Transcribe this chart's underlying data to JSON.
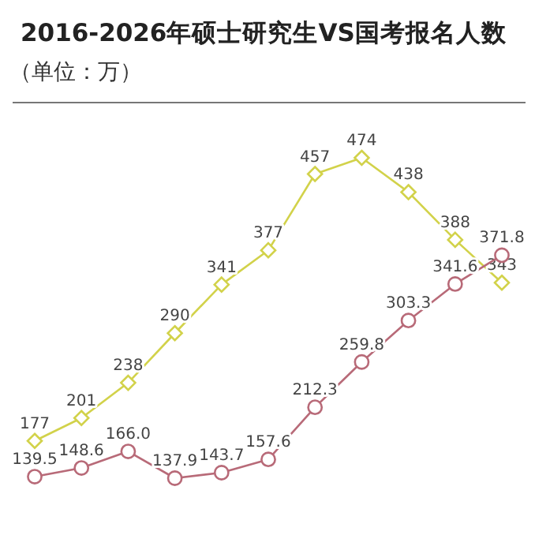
{
  "chart_data": {
    "type": "line",
    "title": "2016-2026年硕士研究生VS国考报名人数",
    "subtitle": "（单位：万）",
    "categories": [
      null,
      null,
      null,
      null,
      null,
      null,
      null,
      null,
      null,
      null,
      null
    ],
    "data_labels": true,
    "grid": false,
    "series": [
      {
        "color": "#d2d24a",
        "marker": "diamond",
        "values": [
          177,
          201,
          238,
          290,
          341,
          377,
          457,
          474,
          438,
          388,
          343
        ],
        "value_labels": [
          "177",
          "201",
          "238",
          "290",
          "341",
          "377",
          "457",
          "474",
          "438",
          "388",
          "343"
        ]
      },
      {
        "color": "#b86a78",
        "marker": "circle",
        "values": [
          139.5,
          148.6,
          166.0,
          137.9,
          143.7,
          157.6,
          212.3,
          259.8,
          303.3,
          341.6,
          371.8
        ],
        "value_labels": [
          "139.5",
          "148.6",
          "166.0",
          "137.9",
          "143.7",
          "157.6",
          "212.3",
          "259.8",
          "303.3",
          "341.6",
          "371.8"
        ]
      }
    ]
  }
}
